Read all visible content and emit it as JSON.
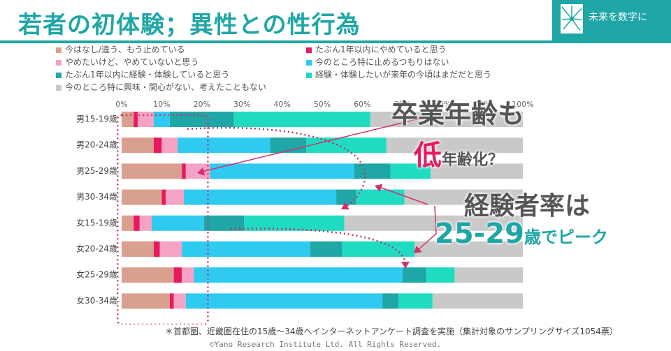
{
  "title": "若者の初体験；異性との性行為",
  "brand": "未来を数字に",
  "footnote": "＊首都圏、近畿圏在住の15歳～34歳へインターネットアンケート調査を実施（集計対象のサンプリングサイズ1054票）",
  "copyright": "©Yano Research Institute Ltd. All Rights Reserved.",
  "annotations": {
    "line1": "卒業年齢も",
    "line2_big": "低",
    "line2_small": "年齢化？",
    "line3": "経験者率は",
    "line4_big": "25-29",
    "line4_small": "歳でピーク"
  },
  "colors": {
    "teal": "#1fa6a6",
    "pink_accent": "#e8195f"
  },
  "chart_data": {
    "type": "bar",
    "orientation": "horizontal",
    "stacked": true,
    "categories": [
      "男15-19歳",
      "男20-24歳",
      "男25-29歳",
      "男30-34歳",
      "女15-19歳",
      "女20-24歳",
      "女25-29歳",
      "女30-34歳"
    ],
    "xlim": [
      0,
      100
    ],
    "ticks": [
      "0%",
      "10%",
      "20%",
      "30%",
      "40%",
      "50%",
      "60%",
      "70%",
      "80%",
      "90%",
      "100%"
    ],
    "series": [
      {
        "name": "今はなし/違う、もう止めている",
        "color": "#d9a08f",
        "values": [
          3,
          8,
          15,
          10,
          3,
          8,
          13,
          12
        ]
      },
      {
        "name": "たぶん1年以内にやめていると思う",
        "color": "#e8195f",
        "values": [
          1,
          2,
          1,
          1,
          1.5,
          1.5,
          2,
          1
        ]
      },
      {
        "name": "やめたいけど、やめていないと思う",
        "color": "#f4a3c4",
        "values": [
          4,
          4,
          6,
          4.5,
          3,
          5.5,
          3,
          3
        ]
      },
      {
        "name": "今のところ特に止めるつもりはない",
        "color": "#2fcaf0",
        "values": [
          4,
          23,
          36,
          38,
          13,
          32,
          52,
          49
        ]
      },
      {
        "name": "たぶん1年以内に経験・体験していると思う",
        "color": "#1fa6a6",
        "values": [
          16,
          9,
          9,
          5,
          10,
          8,
          6,
          4
        ]
      },
      {
        "name": "経験・体験したいが来年の今頃はまだだと思う",
        "color": "#1fdbc1",
        "values": [
          34,
          20,
          10,
          12,
          25,
          18,
          7,
          8.5
        ]
      },
      {
        "name": "今のところ特に興味・関心がない、考えたこともない",
        "color": "#c9c9c9",
        "values": [
          38,
          34,
          23,
          29.5,
          44.5,
          27,
          17,
          22.5
        ]
      }
    ]
  }
}
